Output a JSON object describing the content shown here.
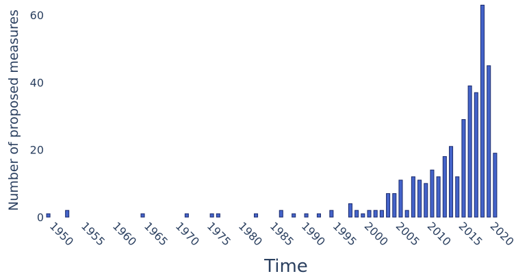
{
  "chart_data": {
    "type": "bar",
    "x_label": "Time",
    "y_label": "Number of proposed measures",
    "x": [
      1949,
      1950,
      1951,
      1952,
      1953,
      1954,
      1955,
      1956,
      1957,
      1958,
      1959,
      1960,
      1961,
      1962,
      1963,
      1964,
      1965,
      1966,
      1967,
      1968,
      1969,
      1970,
      1971,
      1972,
      1973,
      1974,
      1975,
      1976,
      1977,
      1978,
      1979,
      1980,
      1981,
      1982,
      1983,
      1984,
      1985,
      1986,
      1987,
      1988,
      1989,
      1990,
      1991,
      1992,
      1993,
      1994,
      1995,
      1996,
      1997,
      1998,
      1999,
      2000,
      2001,
      2002,
      2003,
      2004,
      2005,
      2006,
      2007,
      2008,
      2009,
      2010,
      2011,
      2012,
      2013,
      2014,
      2015,
      2016,
      2017,
      2018,
      2019,
      2020
    ],
    "values": [
      1,
      0,
      0,
      2,
      0,
      0,
      0,
      0,
      0,
      0,
      0,
      0,
      0,
      0,
      0,
      1,
      0,
      0,
      0,
      0,
      0,
      0,
      1,
      0,
      0,
      0,
      1,
      1,
      0,
      0,
      0,
      0,
      0,
      1,
      0,
      0,
      0,
      2,
      0,
      1,
      0,
      1,
      0,
      1,
      0,
      2,
      0,
      0,
      4,
      2,
      1,
      2,
      2,
      2,
      7,
      7,
      11,
      2,
      12,
      11,
      10,
      14,
      12,
      18,
      21,
      12,
      29,
      39,
      37,
      63,
      45,
      19
    ],
    "color": "#4463c9",
    "edge_color": "#1b2a6b",
    "xlim": [
      1948.5,
      2020.5
    ],
    "xticks": [
      1950,
      1955,
      1960,
      1965,
      1970,
      1975,
      1980,
      1985,
      1990,
      1995,
      2000,
      2005,
      2010,
      2015,
      2020
    ],
    "ylim": [
      0,
      63.5
    ],
    "yticks": [
      0,
      20,
      40,
      60
    ],
    "grid": false
  }
}
